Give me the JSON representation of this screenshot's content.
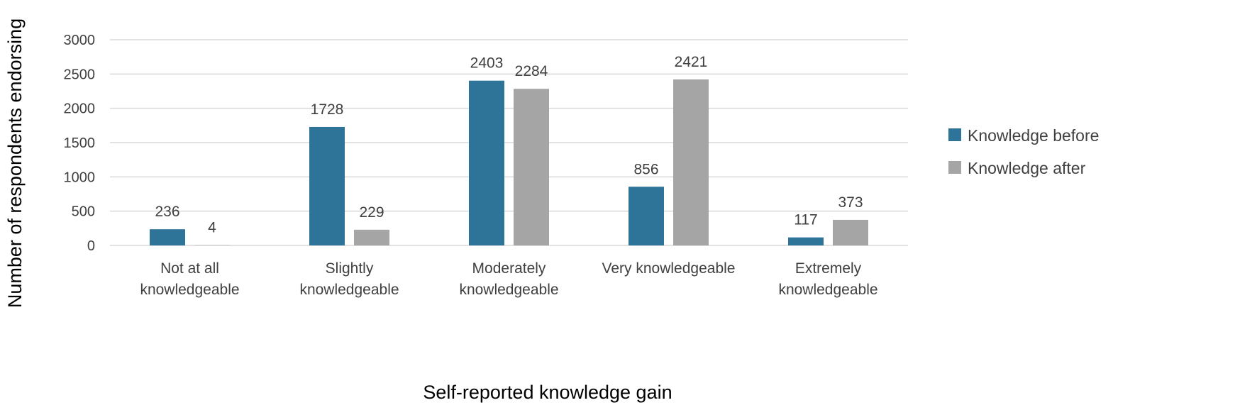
{
  "chart_data": {
    "type": "bar",
    "categories": [
      [
        "Not at all",
        "knowledgeable"
      ],
      [
        "Slightly",
        "knowledgeable"
      ],
      [
        "Moderately",
        "knowledgeable"
      ],
      [
        "Very knowledgeable"
      ],
      [
        "Extremely",
        "knowledgeable"
      ]
    ],
    "series": [
      {
        "name": "Knowledge before",
        "color": "#2E7398",
        "values": [
          236,
          1728,
          2403,
          856,
          117
        ]
      },
      {
        "name": "Knowledge after",
        "color": "#A5A5A5",
        "values": [
          4,
          229,
          2284,
          2421,
          373
        ]
      }
    ],
    "xlabel": "Self-reported knowledge gain",
    "ylabel": "Number of respondents endorsing",
    "ylim": [
      0,
      3000
    ],
    "yticks": [
      0,
      500,
      1000,
      1500,
      2000,
      2500,
      3000
    ],
    "grid": true,
    "legend": "right"
  }
}
